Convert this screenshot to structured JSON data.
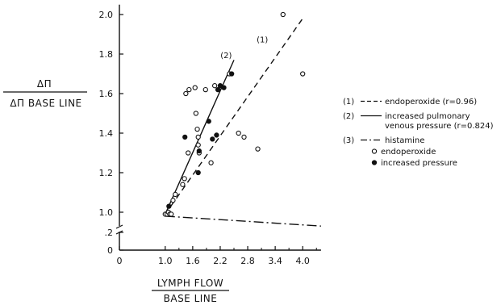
{
  "chart_data": {
    "type": "scatter",
    "title": "",
    "ylabel_numerator": "ΔΠ",
    "ylabel_denominator": "ΔΠ BASE LINE",
    "xlabel_numerator": "LYMPH FLOW",
    "xlabel_denominator": "BASE LINE",
    "xlim": [
      0,
      4.4
    ],
    "ylim": [
      0,
      2.05
    ],
    "x_ticks": [
      {
        "value": 0,
        "label": "0"
      },
      {
        "value": 1.0,
        "label": "1.0"
      },
      {
        "value": 1.6,
        "label": "1.6"
      },
      {
        "value": 2.2,
        "label": "2.2"
      },
      {
        "value": 2.8,
        "label": "2.8"
      },
      {
        "value": 3.4,
        "label": "3.4"
      },
      {
        "value": 4.0,
        "label": "4.0"
      }
    ],
    "y_ticks": [
      {
        "value": 0,
        "label": "0"
      },
      {
        "value": 0.2,
        "label": ".2"
      },
      {
        "value": 1.0,
        "label": "1.0"
      },
      {
        "value": 1.2,
        "label": "1.2"
      },
      {
        "value": 1.4,
        "label": "1.4"
      },
      {
        "value": 1.6,
        "label": "1.6"
      },
      {
        "value": 1.8,
        "label": "1.8"
      },
      {
        "value": 2.0,
        "label": "2.0"
      }
    ],
    "axis_break": true,
    "grid": false,
    "legend_position": "right",
    "lines": [
      {
        "id": "1",
        "label": "(1)",
        "legend_text": "endoperoxide (r=0.96)",
        "style": "dashed",
        "x": [
          1.0,
          4.0
        ],
        "y": [
          0.99,
          1.98
        ]
      },
      {
        "id": "2",
        "label": "(2)",
        "legend_text": "increased pulmonary venous pressure (r=0.824)",
        "legend_lines": [
          "increased pulmonary",
          "venous pressure (r=0.824)"
        ],
        "style": "solid",
        "x": [
          1.0,
          2.5
        ],
        "y": [
          0.99,
          1.77
        ]
      },
      {
        "id": "3",
        "label": "(3)",
        "legend_text": "histamine",
        "style": "dashdot",
        "x": [
          1.0,
          4.4
        ],
        "y": [
          0.98,
          0.93
        ]
      }
    ],
    "line_annotations": [
      {
        "text": "(2)",
        "x": 2.33,
        "y": 1.78
      },
      {
        "text": "(1)",
        "x": 3.12,
        "y": 1.86
      }
    ],
    "series": [
      {
        "name": "endoperoxide",
        "marker": "open-circle",
        "x": [
          1.0,
          1.04,
          1.07,
          1.1,
          1.13,
          1.17,
          1.22,
          1.38,
          1.42,
          1.45,
          1.5,
          1.52,
          1.65,
          1.67,
          1.7,
          1.72,
          1.72,
          1.74,
          1.88,
          2.0,
          2.08,
          2.4,
          2.6,
          2.72,
          3.02,
          3.57,
          4.0
        ],
        "y": [
          0.99,
          0.99,
          1.0,
          0.99,
          0.99,
          1.06,
          1.09,
          1.14,
          1.17,
          1.6,
          1.3,
          1.62,
          1.63,
          1.5,
          1.42,
          1.38,
          1.34,
          1.3,
          1.62,
          1.25,
          1.64,
          1.7,
          1.4,
          1.38,
          1.32,
          2.0,
          1.7
        ]
      },
      {
        "name": "increased pressure",
        "marker": "filled-circle",
        "x": [
          1.08,
          1.43,
          1.72,
          1.74,
          1.95,
          2.03,
          2.12,
          2.15,
          2.2,
          2.28,
          2.45
        ],
        "y": [
          1.03,
          1.38,
          1.2,
          1.31,
          1.46,
          1.37,
          1.39,
          1.62,
          1.64,
          1.63,
          1.7
        ]
      }
    ],
    "legend": [
      {
        "key": "(1)",
        "style": "dashed",
        "lines": [
          "endoperoxide (r=0.96)"
        ]
      },
      {
        "key": "(2)",
        "style": "solid",
        "lines": [
          "increased pulmonary",
          "venous pressure (r=0.824)"
        ]
      },
      {
        "key": "(3)",
        "style": "dashdot",
        "lines": [
          "histamine"
        ]
      },
      {
        "key": "",
        "style": "open-circle",
        "lines": [
          "endoperoxide"
        ]
      },
      {
        "key": "",
        "style": "filled-circle",
        "lines": [
          "increased pressure"
        ]
      }
    ]
  }
}
